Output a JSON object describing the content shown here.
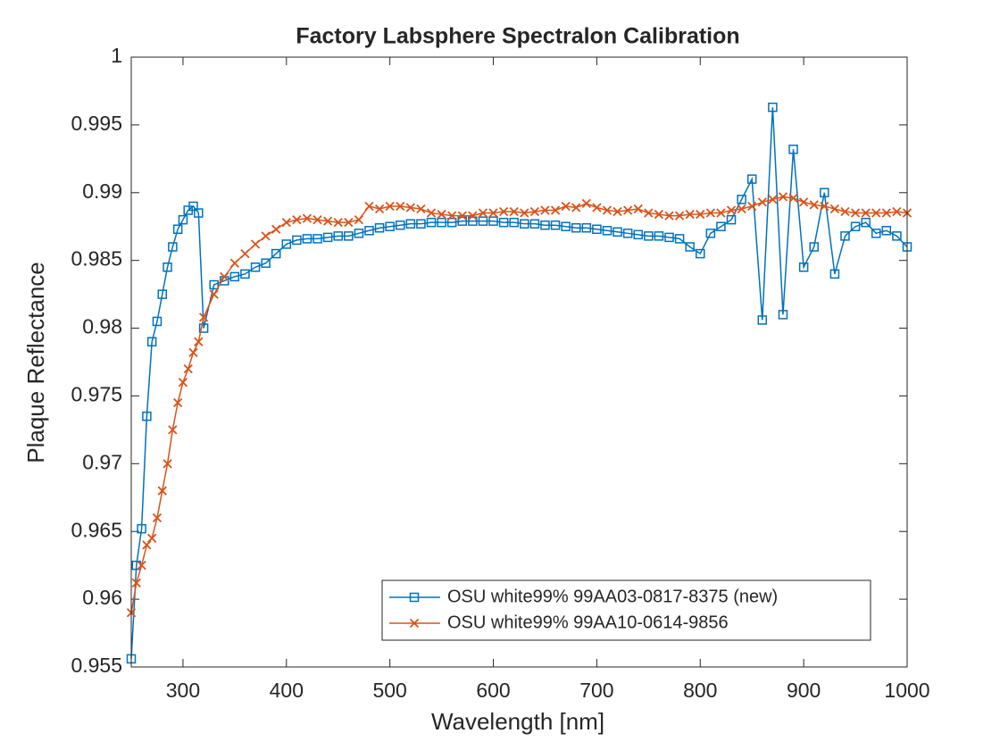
{
  "chart_data": {
    "type": "line",
    "title": "Factory Labsphere Spectralon Calibration",
    "x_label": "Wavelength [nm]",
    "y_label": "Plaque Reflectance",
    "x": [
      250,
      255,
      260,
      265,
      270,
      275,
      280,
      285,
      290,
      295,
      300,
      305,
      310,
      315,
      320,
      330,
      340,
      350,
      360,
      370,
      380,
      390,
      400,
      410,
      420,
      430,
      440,
      450,
      460,
      470,
      480,
      490,
      500,
      510,
      520,
      530,
      540,
      550,
      560,
      570,
      580,
      590,
      600,
      610,
      620,
      630,
      640,
      650,
      660,
      670,
      680,
      690,
      700,
      710,
      720,
      730,
      740,
      750,
      760,
      770,
      780,
      790,
      800,
      810,
      820,
      830,
      840,
      850,
      860,
      870,
      880,
      890,
      900,
      910,
      920,
      930,
      940,
      950,
      960,
      970,
      980,
      990,
      1000
    ],
    "series": [
      {
        "name": "OSU white99% 99AA03-0817-8375 (new)",
        "color": "#0072bd",
        "marker": "square",
        "values": [
          0.9556,
          0.9625,
          0.9652,
          0.9735,
          0.979,
          0.9805,
          0.9825,
          0.9845,
          0.986,
          0.9873,
          0.988,
          0.9887,
          0.989,
          0.9885,
          0.98,
          0.9832,
          0.9835,
          0.9838,
          0.984,
          0.9845,
          0.9848,
          0.9855,
          0.9862,
          0.9865,
          0.9866,
          0.9866,
          0.9867,
          0.9868,
          0.9868,
          0.987,
          0.9872,
          0.9874,
          0.9875,
          0.9876,
          0.9877,
          0.9877,
          0.9878,
          0.9878,
          0.9878,
          0.9879,
          0.9879,
          0.9879,
          0.9879,
          0.9878,
          0.9878,
          0.9877,
          0.9877,
          0.9876,
          0.9876,
          0.9875,
          0.9874,
          0.9874,
          0.9873,
          0.9872,
          0.9871,
          0.987,
          0.9869,
          0.9868,
          0.9868,
          0.9867,
          0.9866,
          0.986,
          0.9855,
          0.987,
          0.9875,
          0.988,
          0.9895,
          0.991,
          0.9806,
          0.9963,
          0.981,
          0.9932,
          0.9845,
          0.986,
          0.99,
          0.984,
          0.9868,
          0.9875,
          0.9878,
          0.987,
          0.9872,
          0.9868,
          0.986
        ]
      },
      {
        "name": "OSU white99% 99AA10-0614-9856",
        "color": "#d95319",
        "marker": "x",
        "values": [
          0.959,
          0.9612,
          0.9625,
          0.964,
          0.9645,
          0.966,
          0.968,
          0.97,
          0.9725,
          0.9745,
          0.976,
          0.977,
          0.9782,
          0.979,
          0.9808,
          0.9825,
          0.9838,
          0.9848,
          0.9855,
          0.9862,
          0.9868,
          0.9873,
          0.9878,
          0.988,
          0.9881,
          0.988,
          0.9879,
          0.9878,
          0.9878,
          0.988,
          0.989,
          0.9888,
          0.989,
          0.989,
          0.9889,
          0.9888,
          0.9885,
          0.9884,
          0.9883,
          0.9883,
          0.9883,
          0.9885,
          0.9885,
          0.9886,
          0.9886,
          0.9885,
          0.9886,
          0.9887,
          0.9887,
          0.989,
          0.9889,
          0.9892,
          0.9889,
          0.9887,
          0.9886,
          0.9887,
          0.9888,
          0.9885,
          0.9884,
          0.9883,
          0.9883,
          0.9884,
          0.9884,
          0.9885,
          0.9885,
          0.9887,
          0.9888,
          0.989,
          0.9893,
          0.9895,
          0.9897,
          0.9896,
          0.9893,
          0.9891,
          0.989,
          0.9888,
          0.9886,
          0.9885,
          0.9885,
          0.9885,
          0.9885,
          0.9886,
          0.9885
        ]
      }
    ],
    "xlim": [
      250,
      1000
    ],
    "xticks": [
      300,
      400,
      500,
      600,
      700,
      800,
      900,
      1000
    ],
    "ylim": [
      0.955,
      1
    ],
    "yticks": [
      0.955,
      0.96,
      0.965,
      0.97,
      0.975,
      0.98,
      0.985,
      0.99,
      0.995,
      1
    ],
    "grid": false,
    "legend_position": "lower-right"
  }
}
